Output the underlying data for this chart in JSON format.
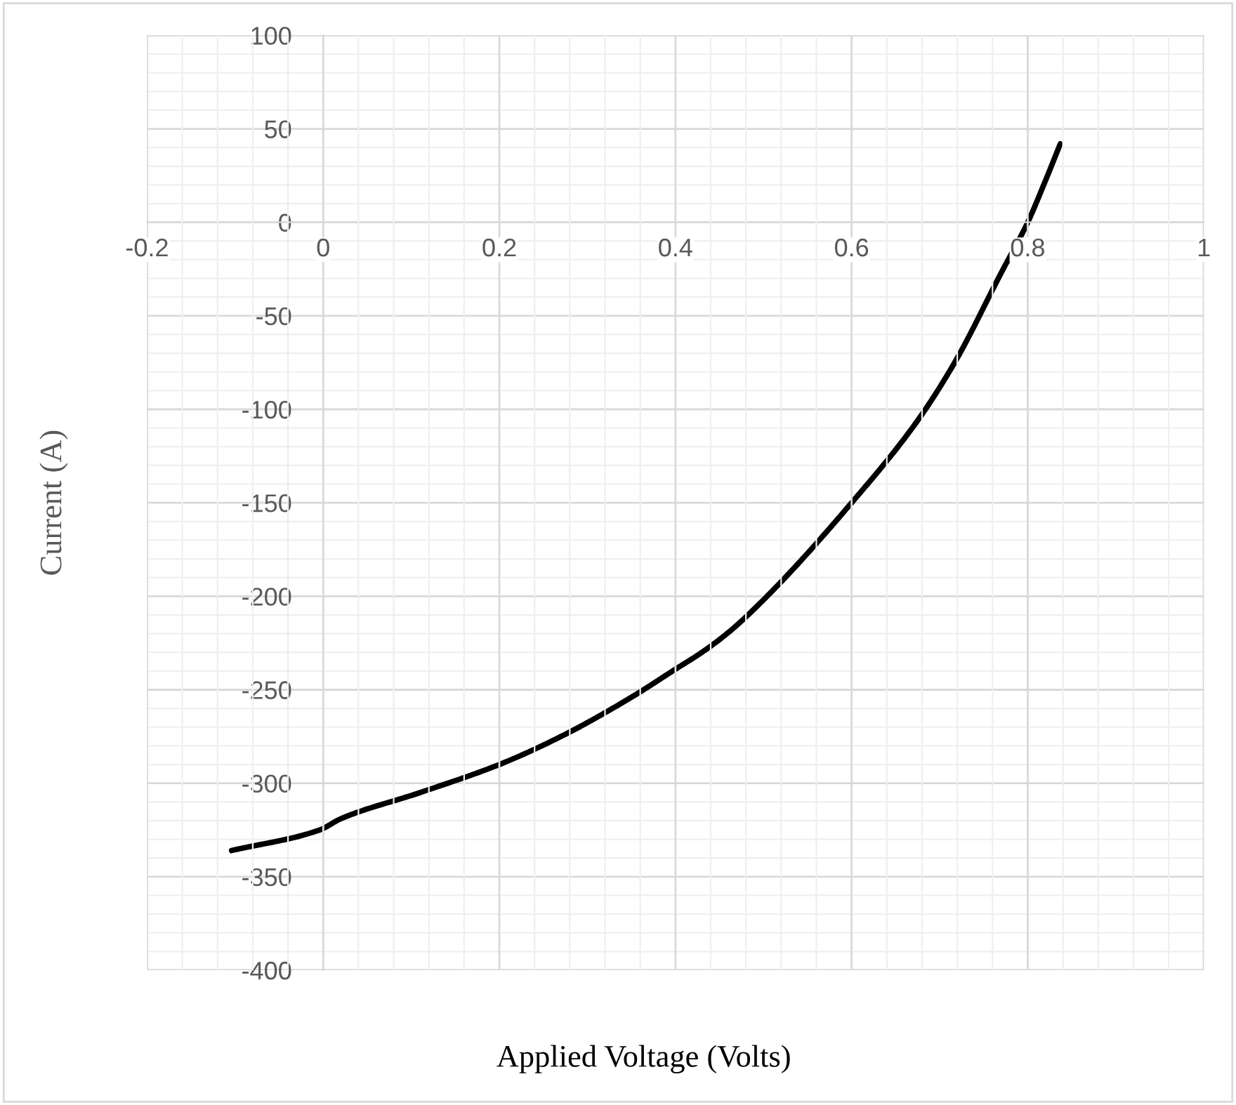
{
  "chart_data": {
    "type": "line",
    "xlabel": "Applied Voltage (Volts)",
    "ylabel": "Current (A)",
    "xlim": [
      -0.2,
      1
    ],
    "xticks": [
      -0.2,
      0,
      0.2,
      0.4,
      0.6,
      0.8,
      1
    ],
    "ylim": [
      -400,
      100
    ],
    "yticks": [
      -400,
      -350,
      -300,
      -250,
      -200,
      -150,
      -100,
      -50,
      0,
      50,
      100
    ],
    "grid": true,
    "marker": "none",
    "line_style": "solid",
    "series": [
      {
        "color": "#000000",
        "x": [
          -0.104,
          -0.004,
          0.02,
          0.11,
          0.2,
          0.27,
          0.35,
          0.4,
          0.43,
          0.461,
          0.504,
          0.6,
          0.675,
          0.717,
          0.771,
          0.8,
          0.819,
          0.837
        ],
        "values": [
          -336,
          -325,
          -319,
          -305,
          -290,
          -275,
          -254,
          -239,
          -230,
          -219,
          -200,
          -150,
          -106,
          -75,
          -26,
          0,
          21,
          42
        ]
      }
    ]
  }
}
